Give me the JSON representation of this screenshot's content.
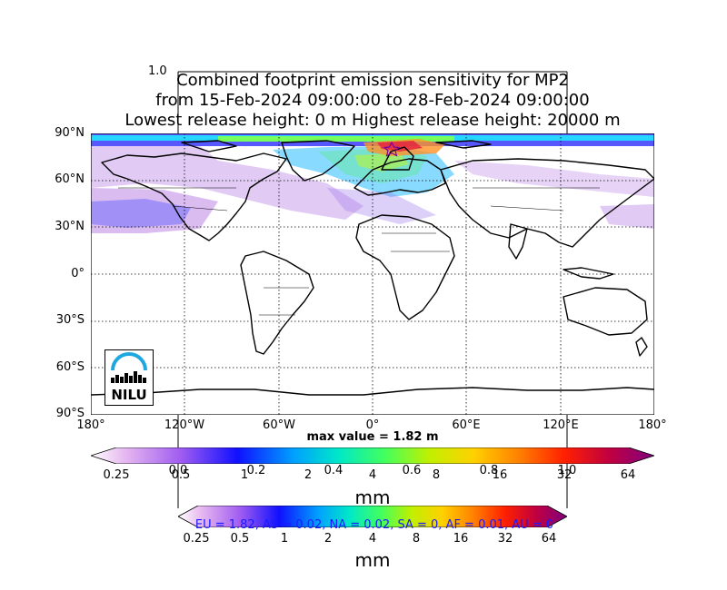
{
  "figure": {
    "frame_corner_label": "1.0",
    "title_lines": [
      "Combined footprint emission sensitivity for MP2",
      "from 15-Feb-2024 09:00:00 to 28-Feb-2024 09:00:00",
      "Lowest release height: 0 m       Highest release height: 20000 m"
    ],
    "max_value_label": "max value = 1.82 m",
    "summary_line": "EU = 1.82,  AS = 0.02,  NA = 0.02,  SA = 0,  AF = 0.01,  AU = 0",
    "summary_color": "#1a1aff",
    "logo_text": "NILU",
    "logo_color": "#1fa8e0"
  },
  "map": {
    "projection": "cylindrical",
    "lat_labels": [
      "90°N",
      "60°N",
      "30°N",
      "0°",
      "30°S",
      "60°S",
      "90°S"
    ],
    "lon_labels": [
      "180°",
      "120°W",
      "60°W",
      "0°",
      "60°E",
      "120°E",
      "180°"
    ],
    "grid": "dotted",
    "release_marker": {
      "symbol": "star",
      "lat": 78,
      "lon": 12
    },
    "footprint_regions": [
      {
        "name": "Arctic",
        "level": "high"
      },
      {
        "name": "North Atlantic / Europe",
        "level": "medium"
      },
      {
        "name": "North Pacific / North America",
        "level": "low"
      }
    ]
  },
  "colorbar_main": {
    "tick_labels": [
      "0.25",
      "0.5",
      "1",
      "2",
      "4",
      "8",
      "16",
      "32",
      "64"
    ],
    "unit": "mm",
    "extend": "both"
  },
  "colorbar_secondary": {
    "tick_labels": [
      "0.25",
      "0.5",
      "1",
      "2",
      "4",
      "8",
      "16",
      "32",
      "64"
    ],
    "unit": "mm",
    "extend": "both"
  },
  "stray_axis_labels": [
    "0.0",
    "0.2",
    "0.4",
    "0.6",
    "0.8",
    "1.0"
  ],
  "palette": [
    "#ffffff",
    "#e6b8f0",
    "#c48be0",
    "#a05cf0",
    "#6a3cff",
    "#1010ff",
    "#0070ff",
    "#00c0ff",
    "#00e8c8",
    "#40ff60",
    "#b0f000",
    "#f0f000",
    "#ffc000",
    "#ff8000",
    "#ff3000",
    "#e0001e",
    "#b00050",
    "#800080"
  ]
}
